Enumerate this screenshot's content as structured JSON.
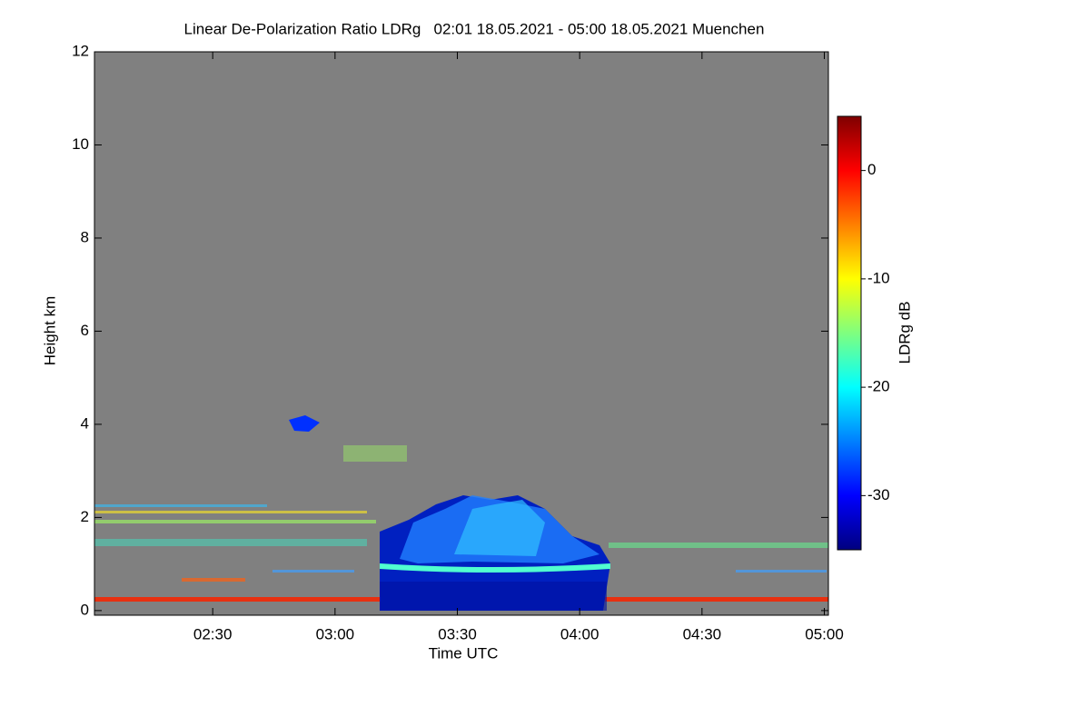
{
  "chart_data": {
    "type": "heatmap",
    "title": "Linear De-Polarization Ratio LDRg   02:01 18.05.2021 - 05:00 18.05.2021 Muenchen",
    "xlabel": "Time UTC",
    "ylabel": "Height km",
    "xlim": [
      121,
      301
    ],
    "xticks": [
      {
        "value": 150,
        "label": "02:30"
      },
      {
        "value": 180,
        "label": "03:00"
      },
      {
        "value": 210,
        "label": "03:30"
      },
      {
        "value": 240,
        "label": "04:00"
      },
      {
        "value": 270,
        "label": "04:30"
      },
      {
        "value": 300,
        "label": "05:00"
      }
    ],
    "ylim": [
      -0.1,
      12
    ],
    "yticks": [
      0,
      2,
      4,
      6,
      8,
      10,
      12
    ],
    "background": "#808080",
    "colorbar": {
      "label": "LDRg dB",
      "lim": [
        -35,
        5
      ],
      "ticks": [
        -30,
        -20,
        -10,
        0
      ],
      "colormap": [
        "#00007f",
        "#0000ff",
        "#007fff",
        "#00ffff",
        "#7fff7f",
        "#ffff00",
        "#ff7f00",
        "#ff0000",
        "#7f0000"
      ]
    }
  }
}
